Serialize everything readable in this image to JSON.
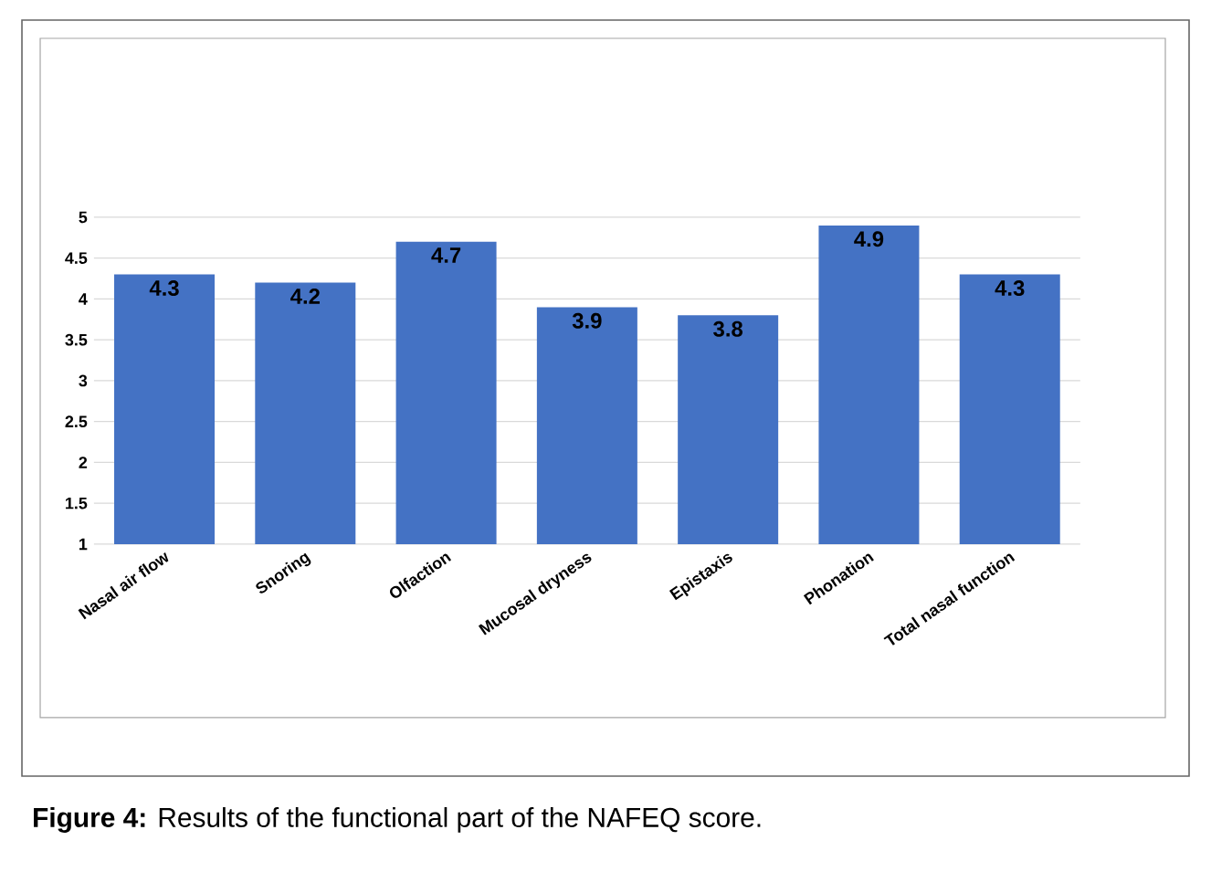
{
  "chart_data": {
    "type": "bar",
    "categories": [
      "Nasal air flow",
      "Snoring",
      "Olfaction",
      "Mucosal dryness",
      "Epistaxis",
      "Phonation",
      "Total nasal function"
    ],
    "values": [
      4.3,
      4.2,
      4.7,
      3.9,
      3.8,
      4.9,
      4.3
    ],
    "color": "#4472c4",
    "ylim": [
      1,
      5
    ],
    "yticks": [
      1,
      1.5,
      2,
      2.5,
      3,
      3.5,
      4,
      4.5,
      5
    ],
    "grid": "y",
    "data_labels": true,
    "annotations": [
      "**Figure 4:** Results of the functional part of the NAFEQ score."
    ]
  }
}
